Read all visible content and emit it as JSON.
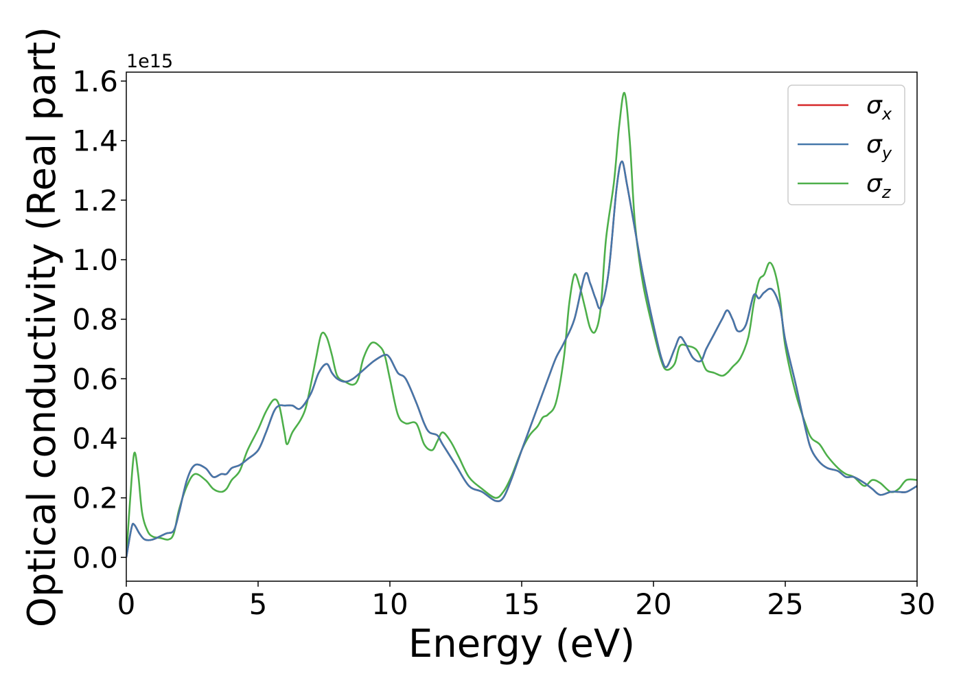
{
  "chart_data": {
    "type": "line",
    "xlabel": "Energy (eV)",
    "ylabel": "Optical conductivity (Real part)",
    "y_offset_text": "1e15",
    "xlim": [
      0,
      30
    ],
    "ylim": [
      -0.08,
      1.63
    ],
    "x_ticks": [
      0,
      5,
      10,
      15,
      20,
      25,
      30
    ],
    "x_tick_labels": [
      "0",
      "5",
      "10",
      "15",
      "20",
      "25",
      "30"
    ],
    "y_ticks": [
      0.0,
      0.2,
      0.4,
      0.6,
      0.8,
      1.0,
      1.2,
      1.4,
      1.6
    ],
    "y_tick_labels": [
      "0.0",
      "0.2",
      "0.4",
      "0.6",
      "0.8",
      "1.0",
      "1.2",
      "1.4",
      "1.6"
    ],
    "grid": false,
    "legend_position": "top-right",
    "series": [
      {
        "name": "σx",
        "legend_base": "σ",
        "legend_sub": "x",
        "color": "#d62728",
        "x": [
          0,
          0.2,
          0.3,
          0.5,
          0.7,
          1.0,
          1.5,
          1.8,
          2.0,
          2.3,
          2.6,
          3.0,
          3.3,
          3.6,
          3.8,
          4.0,
          4.3,
          4.6,
          5.0,
          5.3,
          5.6,
          5.8,
          6.0,
          6.3,
          6.6,
          7.0,
          7.3,
          7.6,
          7.8,
          8.0,
          8.3,
          8.6,
          9.0,
          9.4,
          9.8,
          10.0,
          10.3,
          10.6,
          11.0,
          11.3,
          11.5,
          11.8,
          12.0,
          12.5,
          13.0,
          13.5,
          14.0,
          14.3,
          14.6,
          15.0,
          15.5,
          16.0,
          16.3,
          16.6,
          17.0,
          17.4,
          17.6,
          17.8,
          18.0,
          18.3,
          18.6,
          18.8,
          19.0,
          19.3,
          19.6,
          20.0,
          20.3,
          20.5,
          20.8,
          21.0,
          21.2,
          21.5,
          21.8,
          22.0,
          22.3,
          22.6,
          22.8,
          23.0,
          23.2,
          23.5,
          23.8,
          24.0,
          24.2,
          24.5,
          24.8,
          25.0,
          25.4,
          25.8,
          26.0,
          26.3,
          26.6,
          27.0,
          27.3,
          27.6,
          28.0,
          28.3,
          28.6,
          29.0,
          29.3,
          29.6,
          30.0
        ],
        "y": [
          0.0,
          0.1,
          0.11,
          0.08,
          0.06,
          0.06,
          0.08,
          0.09,
          0.15,
          0.26,
          0.31,
          0.3,
          0.27,
          0.28,
          0.28,
          0.3,
          0.31,
          0.33,
          0.36,
          0.42,
          0.49,
          0.51,
          0.51,
          0.51,
          0.5,
          0.55,
          0.62,
          0.65,
          0.62,
          0.6,
          0.59,
          0.6,
          0.63,
          0.66,
          0.68,
          0.67,
          0.62,
          0.6,
          0.52,
          0.45,
          0.42,
          0.41,
          0.38,
          0.31,
          0.24,
          0.22,
          0.19,
          0.2,
          0.26,
          0.36,
          0.48,
          0.6,
          0.67,
          0.72,
          0.8,
          0.95,
          0.92,
          0.87,
          0.84,
          0.96,
          1.24,
          1.33,
          1.25,
          1.1,
          0.95,
          0.78,
          0.67,
          0.64,
          0.7,
          0.74,
          0.72,
          0.67,
          0.66,
          0.7,
          0.75,
          0.8,
          0.83,
          0.8,
          0.76,
          0.78,
          0.88,
          0.87,
          0.89,
          0.9,
          0.84,
          0.73,
          0.58,
          0.42,
          0.36,
          0.32,
          0.3,
          0.29,
          0.27,
          0.27,
          0.25,
          0.23,
          0.21,
          0.22,
          0.22,
          0.22,
          0.24
        ]
      },
      {
        "name": "σy",
        "legend_base": "σ",
        "legend_sub": "y",
        "color": "#4477aa",
        "x": [
          0,
          0.2,
          0.3,
          0.5,
          0.7,
          1.0,
          1.5,
          1.8,
          2.0,
          2.3,
          2.6,
          3.0,
          3.3,
          3.6,
          3.8,
          4.0,
          4.3,
          4.6,
          5.0,
          5.3,
          5.6,
          5.8,
          6.0,
          6.3,
          6.6,
          7.0,
          7.3,
          7.6,
          7.8,
          8.0,
          8.3,
          8.6,
          9.0,
          9.4,
          9.8,
          10.0,
          10.3,
          10.6,
          11.0,
          11.3,
          11.5,
          11.8,
          12.0,
          12.5,
          13.0,
          13.5,
          14.0,
          14.3,
          14.6,
          15.0,
          15.5,
          16.0,
          16.3,
          16.6,
          17.0,
          17.4,
          17.6,
          17.8,
          18.0,
          18.3,
          18.6,
          18.8,
          19.0,
          19.3,
          19.6,
          20.0,
          20.3,
          20.5,
          20.8,
          21.0,
          21.2,
          21.5,
          21.8,
          22.0,
          22.3,
          22.6,
          22.8,
          23.0,
          23.2,
          23.5,
          23.8,
          24.0,
          24.2,
          24.5,
          24.8,
          25.0,
          25.4,
          25.8,
          26.0,
          26.3,
          26.6,
          27.0,
          27.3,
          27.6,
          28.0,
          28.3,
          28.6,
          29.0,
          29.3,
          29.6,
          30.0
        ],
        "y": [
          0.0,
          0.1,
          0.11,
          0.08,
          0.06,
          0.06,
          0.08,
          0.09,
          0.15,
          0.26,
          0.31,
          0.3,
          0.27,
          0.28,
          0.28,
          0.3,
          0.31,
          0.33,
          0.36,
          0.42,
          0.49,
          0.51,
          0.51,
          0.51,
          0.5,
          0.55,
          0.62,
          0.65,
          0.62,
          0.6,
          0.59,
          0.6,
          0.63,
          0.66,
          0.68,
          0.67,
          0.62,
          0.6,
          0.52,
          0.45,
          0.42,
          0.41,
          0.38,
          0.31,
          0.24,
          0.22,
          0.19,
          0.2,
          0.26,
          0.36,
          0.48,
          0.6,
          0.67,
          0.72,
          0.8,
          0.95,
          0.92,
          0.87,
          0.84,
          0.96,
          1.24,
          1.33,
          1.25,
          1.1,
          0.95,
          0.78,
          0.67,
          0.64,
          0.7,
          0.74,
          0.72,
          0.67,
          0.66,
          0.7,
          0.75,
          0.8,
          0.83,
          0.8,
          0.76,
          0.78,
          0.88,
          0.87,
          0.89,
          0.9,
          0.84,
          0.73,
          0.58,
          0.42,
          0.36,
          0.32,
          0.3,
          0.29,
          0.27,
          0.27,
          0.25,
          0.23,
          0.21,
          0.22,
          0.22,
          0.22,
          0.24
        ]
      },
      {
        "name": "σz",
        "legend_base": "σ",
        "legend_sub": "z",
        "color": "#4daf4a",
        "x": [
          0,
          0.15,
          0.3,
          0.45,
          0.6,
          0.8,
          1.0,
          1.3,
          1.6,
          1.8,
          2.0,
          2.3,
          2.6,
          3.0,
          3.3,
          3.6,
          3.8,
          4.0,
          4.3,
          4.6,
          5.0,
          5.3,
          5.6,
          5.8,
          6.0,
          6.1,
          6.3,
          6.6,
          6.8,
          7.0,
          7.2,
          7.4,
          7.6,
          7.8,
          8.0,
          8.3,
          8.6,
          8.8,
          9.0,
          9.3,
          9.6,
          9.8,
          10.0,
          10.3,
          10.6,
          11.0,
          11.3,
          11.6,
          11.8,
          12.0,
          12.3,
          12.6,
          13.0,
          13.5,
          14.0,
          14.3,
          14.6,
          15.0,
          15.3,
          15.6,
          15.8,
          16.0,
          16.3,
          16.6,
          16.8,
          17.0,
          17.2,
          17.4,
          17.6,
          17.8,
          18.0,
          18.2,
          18.5,
          18.7,
          18.9,
          19.1,
          19.3,
          19.6,
          20.0,
          20.3,
          20.5,
          20.8,
          21.0,
          21.3,
          21.6,
          21.8,
          22.0,
          22.3,
          22.6,
          22.8,
          23.0,
          23.3,
          23.6,
          23.8,
          24.0,
          24.2,
          24.4,
          24.6,
          24.8,
          25.0,
          25.4,
          25.8,
          26.0,
          26.3,
          26.6,
          27.0,
          27.3,
          27.6,
          28.0,
          28.3,
          28.6,
          29.0,
          29.3,
          29.6,
          30.0
        ],
        "y": [
          0.0,
          0.2,
          0.35,
          0.28,
          0.15,
          0.09,
          0.07,
          0.065,
          0.06,
          0.08,
          0.16,
          0.24,
          0.28,
          0.26,
          0.23,
          0.22,
          0.23,
          0.26,
          0.29,
          0.36,
          0.43,
          0.49,
          0.53,
          0.51,
          0.42,
          0.38,
          0.42,
          0.46,
          0.5,
          0.58,
          0.67,
          0.75,
          0.74,
          0.68,
          0.61,
          0.59,
          0.58,
          0.6,
          0.67,
          0.72,
          0.71,
          0.68,
          0.6,
          0.48,
          0.45,
          0.45,
          0.38,
          0.36,
          0.39,
          0.42,
          0.39,
          0.34,
          0.27,
          0.23,
          0.2,
          0.22,
          0.27,
          0.36,
          0.41,
          0.44,
          0.47,
          0.48,
          0.52,
          0.67,
          0.85,
          0.95,
          0.91,
          0.84,
          0.77,
          0.76,
          0.84,
          1.07,
          1.26,
          1.45,
          1.56,
          1.4,
          1.12,
          0.92,
          0.76,
          0.66,
          0.63,
          0.65,
          0.71,
          0.71,
          0.7,
          0.67,
          0.63,
          0.62,
          0.61,
          0.62,
          0.64,
          0.67,
          0.74,
          0.85,
          0.93,
          0.95,
          0.99,
          0.96,
          0.87,
          0.71,
          0.55,
          0.44,
          0.4,
          0.38,
          0.34,
          0.3,
          0.28,
          0.27,
          0.24,
          0.26,
          0.25,
          0.22,
          0.23,
          0.26,
          0.26
        ]
      }
    ]
  }
}
